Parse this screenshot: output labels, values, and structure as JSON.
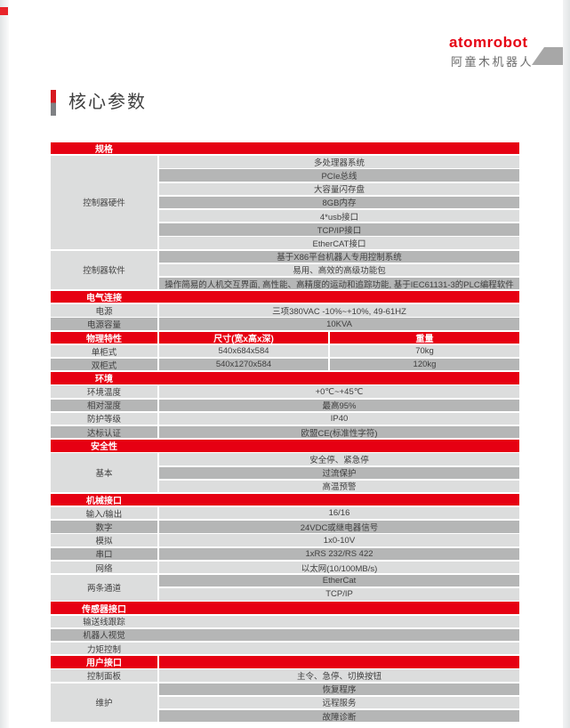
{
  "logo": {
    "brand": "atomrobot",
    "brand_cn": "阿童木机器人"
  },
  "title": "核心参数",
  "colors": {
    "header_red": "#e60012",
    "row_light": "#dcdddd",
    "row_dark": "#b5b6b6",
    "text": "#3f3f3f",
    "accent_bar_red": "#d71a21",
    "accent_bar_gray": "#7f8184",
    "deco_gray": "#a7a7a7"
  },
  "table": {
    "sections": [
      {
        "id": "spec",
        "title": "规格",
        "layout": "two",
        "groups": [
          {
            "label": "控制器硬件",
            "values": [
              "多处理器系统",
              "PCIe总线",
              "大容量闪存盘",
              "8GB内存",
              "4*usb接口",
              "TCP/IP接口",
              "EtherCAT接口"
            ]
          },
          {
            "label": "控制器软件",
            "values": [
              "基于X86平台机器人专用控制系统",
              "易用、高效的高级功能包",
              "操作简易的人机交互界面, 高性能、高精度的运动和追踪功能, 基于IEC61131-3的PLC编程软件"
            ]
          }
        ]
      },
      {
        "id": "electrical",
        "title": "电气连接",
        "layout": "two",
        "groups": [
          {
            "label": "电源",
            "values": [
              "三项380VAC -10%~+10%, 49-61HZ"
            ]
          },
          {
            "label": "电源容量",
            "values": [
              "10KVA"
            ]
          }
        ]
      },
      {
        "id": "physical",
        "title": "物理特性",
        "layout": "three",
        "header_cells": [
          "物理特性",
          "尺寸(宽x高x深)",
          "重量"
        ],
        "rows": [
          [
            "单柜式",
            "540x684x584",
            "70kg"
          ],
          [
            "双柜式",
            "540x1270x584",
            "120kg"
          ]
        ]
      },
      {
        "id": "environment",
        "title": "环境",
        "layout": "two",
        "groups": [
          {
            "label": "环境温度",
            "values": [
              "+0℃~+45℃"
            ]
          },
          {
            "label": "相对湿度",
            "values": [
              "最高95%"
            ]
          },
          {
            "label": "防护等级",
            "values": [
              "IP40"
            ]
          },
          {
            "label": "达标认证",
            "values": [
              "欧盟CE(标准性字符)"
            ]
          }
        ]
      },
      {
        "id": "safety",
        "title": "安全性",
        "layout": "two",
        "groups": [
          {
            "label": "基本",
            "values": [
              "安全停、紧急停",
              "过流保护",
              "高温预警"
            ]
          }
        ]
      },
      {
        "id": "mechanical",
        "title": "机械接口",
        "layout": "two",
        "groups": [
          {
            "label": "输入/输出",
            "values": [
              "16/16"
            ]
          },
          {
            "label": "数字",
            "values": [
              "24VDC或继电器信号"
            ]
          },
          {
            "label": "模拟",
            "values": [
              "1x0-10V"
            ]
          },
          {
            "label": "串口",
            "values": [
              "1xRS 232/RS 422"
            ]
          },
          {
            "label": "网络",
            "values": [
              "以太网(10/100MB/s)"
            ]
          },
          {
            "label": "两条通道",
            "values": [
              "EtherCat",
              "TCP/IP"
            ]
          }
        ]
      },
      {
        "id": "sensor",
        "title": "传感器接口",
        "layout": "full",
        "items": [
          "输送线跟踪",
          "机器人视觉",
          "力矩控制"
        ]
      },
      {
        "id": "user",
        "title": "用户接口",
        "layout": "two",
        "split_header": true,
        "groups": [
          {
            "label": "控制面板",
            "values": [
              "主令、急停、切换按钮"
            ]
          },
          {
            "label": "维护",
            "values": [
              "恢复程序",
              "远程服务",
              "故障诊断"
            ]
          }
        ]
      }
    ]
  }
}
